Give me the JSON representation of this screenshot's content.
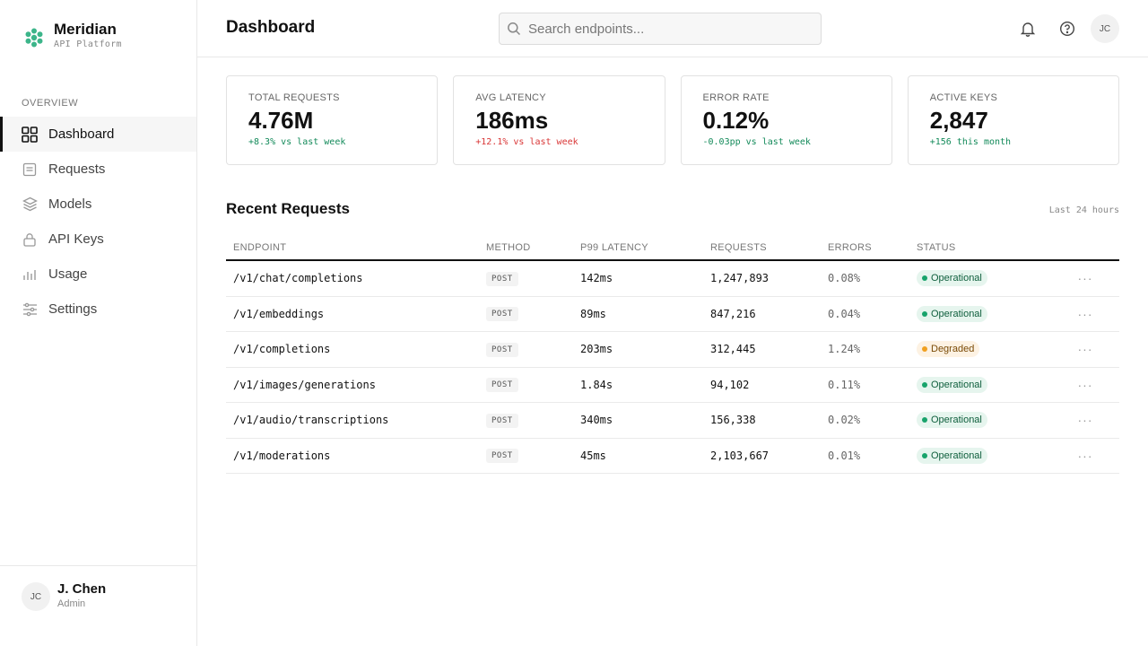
{
  "brand": {
    "name": "Meridian",
    "subtitle": "API Platform"
  },
  "sidebar": {
    "section": "OVERVIEW",
    "items": [
      {
        "label": "Dashboard",
        "icon": "grid-icon",
        "active": true
      },
      {
        "label": "Requests",
        "icon": "document-icon"
      },
      {
        "label": "Models",
        "icon": "layers-icon"
      },
      {
        "label": "API Keys",
        "icon": "lock-icon"
      },
      {
        "label": "Usage",
        "icon": "bar-chart-icon"
      },
      {
        "label": "Settings",
        "icon": "sliders-icon"
      }
    ],
    "user": {
      "initials": "JC",
      "name": "J. Chen",
      "role": "Admin"
    }
  },
  "header": {
    "title": "Dashboard",
    "search_placeholder": "Search endpoints...",
    "avatar_initials": "JC"
  },
  "stats": [
    {
      "label": "TOTAL REQUESTS",
      "value": "4.76M",
      "delta": "+8.3% vs last week",
      "tone": "pos"
    },
    {
      "label": "AVG LATENCY",
      "value": "186ms",
      "delta": "+12.1% vs last week",
      "tone": "neg"
    },
    {
      "label": "ERROR RATE",
      "value": "0.12%",
      "delta": "-0.03pp vs last week",
      "tone": "pos"
    },
    {
      "label": "ACTIVE KEYS",
      "value": "2,847",
      "delta": "+156 this month",
      "tone": "pos"
    }
  ],
  "recent": {
    "title": "Recent Requests",
    "note": "Last 24 hours",
    "columns": [
      "ENDPOINT",
      "METHOD",
      "P99 LATENCY",
      "REQUESTS",
      "ERRORS",
      "STATUS"
    ],
    "rows": [
      {
        "endpoint": "/v1/chat/completions",
        "method": "POST",
        "latency": "142ms",
        "requests": "1,247,893",
        "errors": "0.08%",
        "status": "Operational"
      },
      {
        "endpoint": "/v1/embeddings",
        "method": "POST",
        "latency": "89ms",
        "requests": "847,216",
        "errors": "0.04%",
        "status": "Operational"
      },
      {
        "endpoint": "/v1/completions",
        "method": "POST",
        "latency": "203ms",
        "requests": "312,445",
        "errors": "1.24%",
        "status": "Degraded"
      },
      {
        "endpoint": "/v1/images/generations",
        "method": "POST",
        "latency": "1.84s",
        "requests": "94,102",
        "errors": "0.11%",
        "status": "Operational"
      },
      {
        "endpoint": "/v1/audio/transcriptions",
        "method": "POST",
        "latency": "340ms",
        "requests": "156,338",
        "errors": "0.02%",
        "status": "Operational"
      },
      {
        "endpoint": "/v1/moderations",
        "method": "POST",
        "latency": "45ms",
        "requests": "2,103,667",
        "errors": "0.01%",
        "status": "Operational"
      }
    ],
    "row_action": "···"
  },
  "colors": {
    "brand_accent": "#3cb58a",
    "positive": "#138a5a",
    "negative": "#d93636",
    "operational_bg": "#e6f5ee",
    "operational_dot": "#18a36b",
    "degraded_bg": "#fdf2e3",
    "degraded_dot": "#f0a020"
  }
}
